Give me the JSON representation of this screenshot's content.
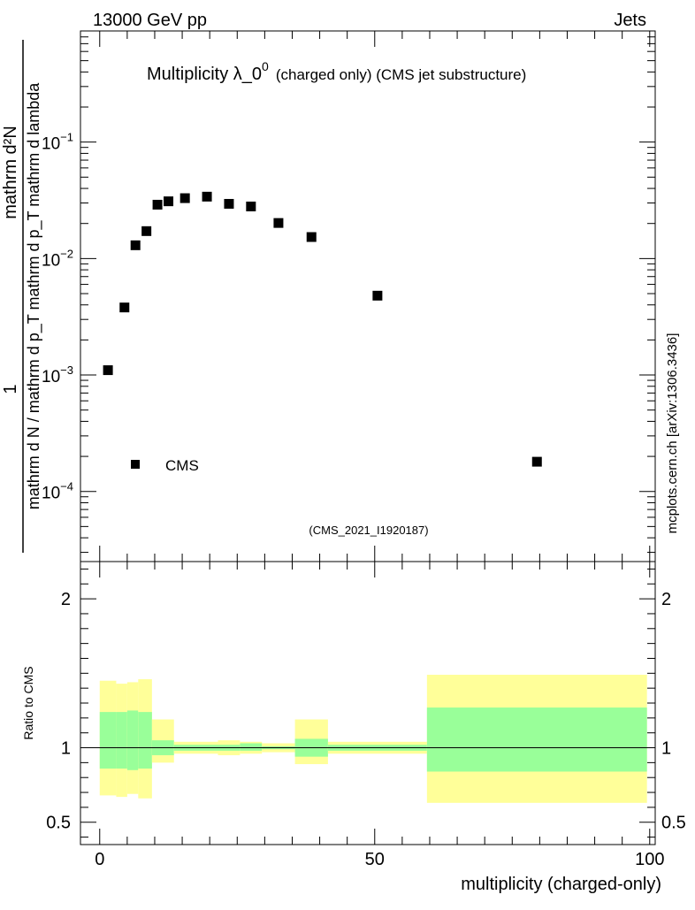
{
  "header": {
    "energy_label": "13000 GeV pp",
    "process_label": "Jets"
  },
  "side_label": "mcplots.cern.ch [arXiv:1306.3436]",
  "analysis_id": "(CMS_2021_I1920187)",
  "colors": {
    "band_outer": "#ffff99",
    "band_inner": "#99ff99",
    "marker": "#000000",
    "analysis_id_text": "#999999"
  },
  "chart_data": [
    {
      "type": "scatter",
      "panel": "main",
      "title_main": "Multiplicity λ_0",
      "title_superscript": "0",
      "title_suffix": "(charged only) (CMS jet substructure)",
      "ylabel_lines": [
        "1",
        "mathrm d N / mathrm d p_T mathrm d p_T mathrm d lambda",
        "mathrm d²N"
      ],
      "yscale": "log",
      "ylim": [
        2.5e-05,
        0.9
      ],
      "xlim": [
        -3.5,
        101
      ],
      "y_ticks": [
        {
          "value": 0.1,
          "mantissa": "10",
          "exponent": "−1"
        },
        {
          "value": 0.01,
          "mantissa": "10",
          "exponent": "−2"
        },
        {
          "value": 0.001,
          "mantissa": "10",
          "exponent": "−3"
        },
        {
          "value": 0.0001,
          "mantissa": "10",
          "exponent": "−4"
        }
      ],
      "legend": {
        "label": "CMS",
        "placement": "bottom-left"
      },
      "series": [
        {
          "name": "CMS",
          "x": [
            1.5,
            4.5,
            6.5,
            8.5,
            10.5,
            12.5,
            15.5,
            19.5,
            23.5,
            27.5,
            32.5,
            38.5,
            50.5,
            79.5
          ],
          "y": [
            0.0011,
            0.0038,
            0.013,
            0.0172,
            0.029,
            0.031,
            0.033,
            0.034,
            0.0295,
            0.028,
            0.0202,
            0.0153,
            0.0048,
            0.00018
          ]
        }
      ]
    },
    {
      "type": "area",
      "panel": "ratio",
      "ylabel": "Ratio to CMS",
      "xlabel": "multiplicity (charged-only)",
      "xlim": [
        -3.5,
        101
      ],
      "ylim": [
        0.35,
        2.25
      ],
      "y_ticks": [
        {
          "value": 0.5,
          "label": "0.5"
        },
        {
          "value": 1,
          "label": "1"
        },
        {
          "value": 2,
          "label": "2"
        }
      ],
      "x_ticks": [
        {
          "value": 0,
          "label": "0"
        },
        {
          "value": 50,
          "label": "50"
        },
        {
          "value": 100,
          "label": "100"
        }
      ],
      "reference_line": 1,
      "bands": [
        {
          "x0": 0,
          "x1": 3,
          "outer": [
            0.68,
            1.45
          ],
          "inner": [
            0.86,
            1.24
          ]
        },
        {
          "x0": 3,
          "x1": 5,
          "outer": [
            0.67,
            1.43
          ],
          "inner": [
            0.86,
            1.24
          ]
        },
        {
          "x0": 5,
          "x1": 7,
          "outer": [
            0.69,
            1.44
          ],
          "inner": [
            0.85,
            1.25
          ]
        },
        {
          "x0": 7,
          "x1": 9.5,
          "outer": [
            0.66,
            1.46
          ],
          "inner": [
            0.86,
            1.24
          ]
        },
        {
          "x0": 9.5,
          "x1": 13.5,
          "outer": [
            0.9,
            1.19
          ],
          "inner": [
            0.95,
            1.05
          ]
        },
        {
          "x0": 13.5,
          "x1": 21.5,
          "outer": [
            0.96,
            1.04
          ],
          "inner": [
            0.98,
            1.02
          ]
        },
        {
          "x0": 21.5,
          "x1": 25.5,
          "outer": [
            0.95,
            1.05
          ],
          "inner": [
            0.98,
            1.02
          ]
        },
        {
          "x0": 25.5,
          "x1": 29.5,
          "outer": [
            0.96,
            1.04
          ],
          "inner": [
            0.98,
            1.03
          ]
        },
        {
          "x0": 29.5,
          "x1": 35.5,
          "outer": [
            0.97,
            1.03
          ],
          "inner": [
            0.99,
            1.01
          ]
        },
        {
          "x0": 35.5,
          "x1": 41.5,
          "outer": [
            0.89,
            1.19
          ],
          "inner": [
            0.94,
            1.06
          ]
        },
        {
          "x0": 41.5,
          "x1": 59.5,
          "outer": [
            0.96,
            1.04
          ],
          "inner": [
            0.98,
            1.02
          ]
        },
        {
          "x0": 59.5,
          "x1": 99.5,
          "outer": [
            0.63,
            1.49
          ],
          "inner": [
            0.84,
            1.27
          ]
        }
      ]
    }
  ]
}
